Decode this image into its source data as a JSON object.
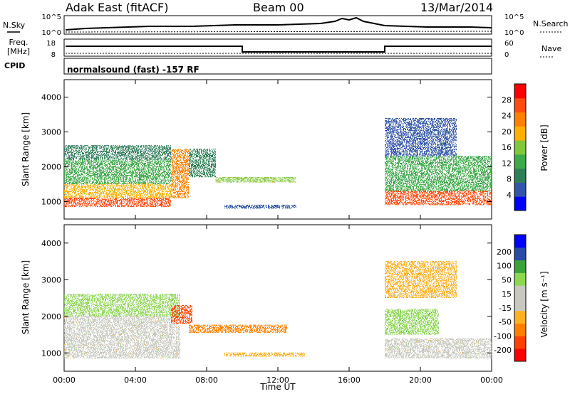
{
  "header": {
    "station": "Adak East (fitACF)",
    "beam": "Beam 00",
    "date": "13/Mar/2014"
  },
  "top_panels": {
    "nsky_label": "N.Sky",
    "nsearch_label": "N.Search",
    "nsky_ticks": [
      "10^5",
      "10^0"
    ],
    "nsearch_ticks": [
      "10^5",
      "10^0"
    ],
    "freq_label_1": "Freq.",
    "freq_label_2": "[MHz]",
    "freq_ticks": [
      "18",
      "8"
    ],
    "nave_label": "Nave",
    "nave_ticks": [
      "60",
      "0"
    ],
    "cpid_label": "CPID",
    "cpid_text": "normalsound (fast) -157 RF"
  },
  "colors": {
    "power": [
      "#0000ff",
      "#3355aa",
      "#2e7f57",
      "#3caa48",
      "#80c83a",
      "#ffb000",
      "#ff8000",
      "#ff4a10",
      "#ff0000"
    ],
    "velocity": [
      "#0000ff",
      "#2a4aa8",
      "#39a33a",
      "#8bd84f",
      "#c8c8c0",
      "#c8c8c0",
      "#ffb020",
      "#ff8000",
      "#ff4000",
      "#ff0000"
    ]
  },
  "chart_data": [
    {
      "type": "heatmap",
      "name": "power",
      "xlabel": "",
      "ylabel": "Slant Range [km]",
      "x_ticks": [
        "00:00",
        "04:00",
        "08:00",
        "12:00",
        "16:00",
        "20:00",
        "00:00"
      ],
      "y_ticks": [
        1000,
        2000,
        3000,
        4000
      ],
      "ylim": [
        500,
        4500
      ],
      "xlim_hours": [
        0,
        24
      ],
      "colorbar": {
        "label": "Power [dB]",
        "ticks": [
          4,
          8,
          12,
          16,
          20,
          24,
          28
        ],
        "range": [
          0,
          32
        ]
      },
      "regions": [
        {
          "t0": 0.0,
          "t1": 6.0,
          "r0": 850,
          "r1": 1100,
          "level": 28
        },
        {
          "t0": 0.0,
          "t1": 6.0,
          "r0": 1100,
          "r1": 1500,
          "level": 18
        },
        {
          "t0": 0.0,
          "t1": 6.0,
          "r0": 1500,
          "r1": 2200,
          "level": 12
        },
        {
          "t0": 0.0,
          "t1": 6.0,
          "r0": 2200,
          "r1": 2600,
          "level": 8
        },
        {
          "t0": 6.0,
          "t1": 7.0,
          "r0": 1100,
          "r1": 2500,
          "level": 22
        },
        {
          "t0": 7.0,
          "t1": 8.5,
          "r0": 1700,
          "r1": 2500,
          "level": 10
        },
        {
          "t0": 8.5,
          "t1": 13.0,
          "r0": 1550,
          "r1": 1700,
          "level": 16
        },
        {
          "t0": 9.0,
          "t1": 13.0,
          "r0": 800,
          "r1": 900,
          "level": 6
        },
        {
          "t0": 18.0,
          "t1": 24.0,
          "r0": 900,
          "r1": 1300,
          "level": 26
        },
        {
          "t0": 18.0,
          "t1": 24.0,
          "r0": 1300,
          "r1": 2300,
          "level": 12
        },
        {
          "t0": 18.0,
          "t1": 22.0,
          "r0": 2300,
          "r1": 3400,
          "level": 6
        }
      ]
    },
    {
      "type": "heatmap",
      "name": "velocity",
      "xlabel": "Time UT",
      "ylabel": "Slant Range [km]",
      "x_ticks": [
        "00:00",
        "04:00",
        "08:00",
        "12:00",
        "16:00",
        "20:00",
        "00:00"
      ],
      "y_ticks": [
        1000,
        2000,
        3000,
        4000
      ],
      "ylim": [
        500,
        4500
      ],
      "xlim_hours": [
        0,
        24
      ],
      "colorbar": {
        "label": "Velocity [m s⁻¹]",
        "ticks": [
          200,
          100,
          50,
          15,
          -15,
          -50,
          -100,
          -200
        ]
      },
      "regions": [
        {
          "t0": 0.0,
          "t1": 6.5,
          "r0": 850,
          "r1": 2000,
          "level": 0
        },
        {
          "t0": 0.0,
          "t1": 6.5,
          "r0": 2000,
          "r1": 2600,
          "level": 20
        },
        {
          "t0": 6.0,
          "t1": 7.2,
          "r0": 1800,
          "r1": 2300,
          "level": -150
        },
        {
          "t0": 7.0,
          "t1": 12.5,
          "r0": 1550,
          "r1": 1750,
          "level": -80
        },
        {
          "t0": 9.0,
          "t1": 13.5,
          "r0": 900,
          "r1": 1000,
          "level": -30
        },
        {
          "t0": 18.0,
          "t1": 24.0,
          "r0": 850,
          "r1": 1400,
          "level": 0
        },
        {
          "t0": 18.0,
          "t1": 21.0,
          "r0": 1500,
          "r1": 2200,
          "level": 40
        },
        {
          "t0": 18.0,
          "t1": 22.0,
          "r0": 2500,
          "r1": 3500,
          "level": -20
        }
      ]
    }
  ]
}
